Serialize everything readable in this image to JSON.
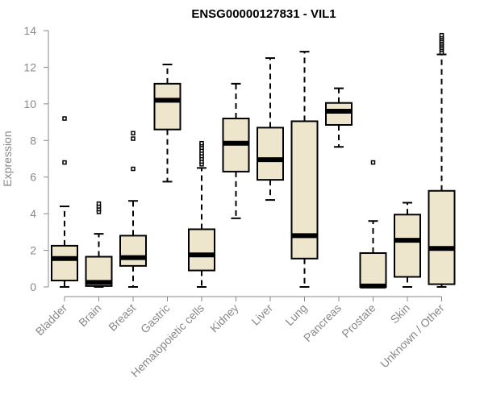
{
  "chart_data": {
    "type": "boxplot",
    "title": "ENSG00000127831 - VIL1",
    "xlabel": "",
    "ylabel": "Expression",
    "ylim": [
      0,
      14
    ],
    "yticks": [
      0,
      2,
      4,
      6,
      8,
      10,
      12,
      14
    ],
    "grid": false,
    "colors": {
      "box_fill": "#EEE6CC",
      "stroke": "#000000",
      "axis": "#888888",
      "tick_label": "#888888",
      "title": "#000000"
    },
    "categories": [
      "Bladder",
      "Brain",
      "Breast",
      "Gastric",
      "Hematopoietic cells",
      "Kidney",
      "Liver",
      "Lung",
      "Pancreas",
      "Prostate",
      "Skin",
      "Unknown / Other"
    ],
    "boxes": [
      {
        "category": "Bladder",
        "whisker_low": 0.0,
        "q1": 0.35,
        "median": 1.55,
        "q3": 2.25,
        "whisker_high": 4.4,
        "outliers": [
          6.8,
          9.2
        ]
      },
      {
        "category": "Brain",
        "whisker_low": 0.0,
        "q1": 0.05,
        "median": 0.25,
        "q3": 1.65,
        "whisker_high": 2.9,
        "outliers": [
          4.1,
          4.25,
          4.4,
          4.55
        ]
      },
      {
        "category": "Breast",
        "whisker_low": 0.0,
        "q1": 1.15,
        "median": 1.6,
        "q3": 2.8,
        "whisker_high": 4.7,
        "outliers": [
          6.45,
          8.1,
          8.4
        ]
      },
      {
        "category": "Gastric",
        "whisker_low": 5.75,
        "q1": 8.6,
        "median": 10.2,
        "q3": 11.1,
        "whisker_high": 12.15,
        "outliers": []
      },
      {
        "category": "Hematopoietic cells",
        "whisker_low": 0.0,
        "q1": 0.9,
        "median": 1.75,
        "q3": 3.15,
        "whisker_high": 6.5,
        "outliers": [
          6.7,
          6.85,
          7.0,
          7.15,
          7.3,
          7.45,
          7.6,
          7.75,
          7.85
        ]
      },
      {
        "category": "Kidney",
        "whisker_low": 3.75,
        "q1": 6.3,
        "median": 7.85,
        "q3": 9.2,
        "whisker_high": 11.1,
        "outliers": []
      },
      {
        "category": "Liver",
        "whisker_low": 4.75,
        "q1": 5.85,
        "median": 6.95,
        "q3": 8.7,
        "whisker_high": 12.5,
        "outliers": []
      },
      {
        "category": "Lung",
        "whisker_low": 0.0,
        "q1": 1.55,
        "median": 2.8,
        "q3": 9.05,
        "whisker_high": 12.85,
        "outliers": []
      },
      {
        "category": "Pancreas",
        "whisker_low": 7.65,
        "q1": 8.85,
        "median": 9.6,
        "q3": 10.05,
        "whisker_high": 10.85,
        "outliers": []
      },
      {
        "category": "Prostate",
        "whisker_low": 0.0,
        "q1": 0.0,
        "median": 0.05,
        "q3": 1.85,
        "whisker_high": 3.6,
        "outliers": [
          6.8
        ]
      },
      {
        "category": "Skin",
        "whisker_low": 0.0,
        "q1": 0.55,
        "median": 2.55,
        "q3": 3.95,
        "whisker_high": 4.6,
        "outliers": []
      },
      {
        "category": "Unknown / Other",
        "whisker_low": 0.0,
        "q1": 0.15,
        "median": 2.1,
        "q3": 5.25,
        "whisker_high": 12.7,
        "outliers": [
          12.8,
          12.95,
          13.05,
          13.15,
          13.25,
          13.35,
          13.45,
          13.55,
          13.65,
          13.75
        ]
      }
    ]
  }
}
